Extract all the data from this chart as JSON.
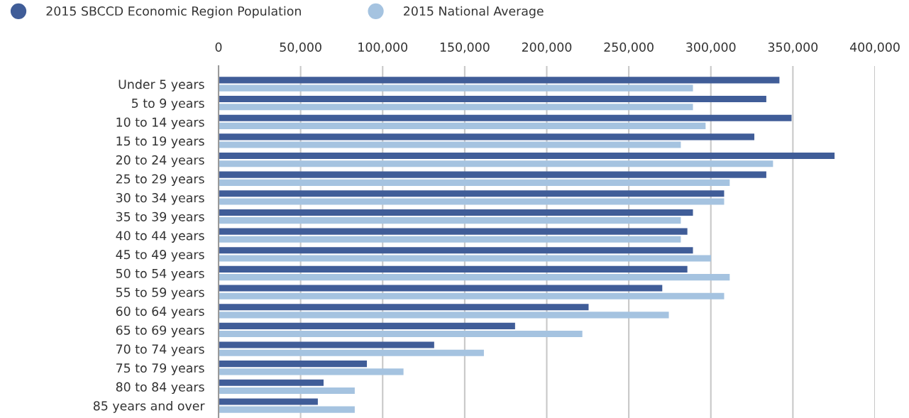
{
  "chart_data": {
    "type": "bar",
    "orientation": "horizontal",
    "categories": [
      "Under 5 years",
      "5 to 9 years",
      "10 to 14 years",
      "15 to 19 years",
      "20 to 24 years",
      "25 to 29 years",
      "30 to 34 years",
      "35 to 39 years",
      "40 to 44 years",
      "45 to 49 years",
      "50 to 54 years",
      "55 to 59 years",
      "60 to 64 years",
      "65 to 69 years",
      "70 to 74 years",
      "75 to 79 years",
      "80 to 84 years",
      "85 years and over"
    ],
    "series": [
      {
        "name": "2015 SBCCD Economic Region Population",
        "color": "#405d98",
        "values": [
          341800,
          333800,
          349200,
          326500,
          375400,
          333800,
          308100,
          289100,
          285700,
          289100,
          285700,
          270400,
          225500,
          180700,
          131400,
          90400,
          64000,
          60500
        ]
      },
      {
        "name": "2015 National Average",
        "color": "#a5c3e0",
        "values": [
          289100,
          289100,
          296800,
          281700,
          337900,
          311500,
          308100,
          281700,
          281700,
          300100,
          311500,
          308100,
          274400,
          221700,
          161700,
          112700,
          83000,
          83000
        ]
      }
    ],
    "xlim": [
      0,
      400000
    ],
    "xticks": [
      0,
      {
        "value": 50000,
        "label": "50,000"
      },
      {
        "value": 100000,
        "label": "100,000"
      },
      {
        "value": 150000,
        "label": "150,000"
      },
      {
        "value": 200000,
        "label": "200,000"
      },
      {
        "value": 250000,
        "label": "250,000"
      },
      {
        "value": 300000,
        "label": "300,000"
      },
      {
        "value": 350000,
        "label": "350,000"
      },
      {
        "value": 400000,
        "label": "400,000"
      }
    ],
    "grid": "x",
    "legend": "top left"
  }
}
